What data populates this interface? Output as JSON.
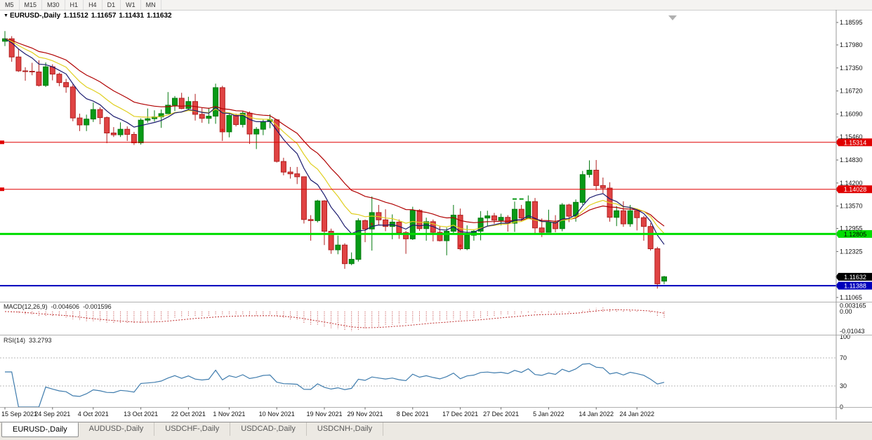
{
  "toolbar": {
    "timeframes": [
      "M5",
      "M15",
      "M30",
      "H1",
      "H4",
      "D1",
      "W1",
      "MN"
    ]
  },
  "chart_header": {
    "dropdown_icon": "▼",
    "symbol": "EURUSD-,Daily",
    "open": "1.11512",
    "high": "1.11657",
    "low": "1.11431",
    "close": "1.11632"
  },
  "price_axis": {
    "ticks": [
      1.18595,
      1.1798,
      1.1735,
      1.1672,
      1.1609,
      1.1546,
      1.1483,
      1.142,
      1.1357,
      1.12955,
      1.12325,
      1.11065
    ]
  },
  "hlines": [
    {
      "price": 1.15314,
      "label": "1.15314",
      "color": "#e00000",
      "text_color": "#ffffff",
      "width": 1
    },
    {
      "price": 1.14028,
      "label": "1.14028",
      "color": "#e00000",
      "text_color": "#ffffff",
      "width": 1
    },
    {
      "price": 1.12805,
      "label": "1.12805",
      "color": "#00dd00",
      "text_color": "#000000",
      "width": 3
    },
    {
      "price": 1.11388,
      "label": "1.11388",
      "color": "#0000bb",
      "text_color": "#ffffff",
      "width": 2
    }
  ],
  "current_price": {
    "price": 1.11632,
    "label": "1.11632",
    "bg": "#000000",
    "text_color": "#ffffff"
  },
  "macd": {
    "name": "MACD(12,26,9)",
    "value_main": "-0.004606",
    "value_signal": "-0.001596",
    "axis": [
      {
        "v": 0.003165,
        "label": "0.003165"
      },
      {
        "v": 0,
        "label": "0.00"
      },
      {
        "v": -0.01043,
        "label": "-0.01043"
      }
    ],
    "color": "#c24040"
  },
  "rsi": {
    "name": "RSI(14)",
    "value": "33.2793",
    "axis": [
      {
        "v": 100,
        "label": "100"
      },
      {
        "v": 70,
        "label": "70"
      },
      {
        "v": 30,
        "label": "30"
      },
      {
        "v": 0,
        "label": "0"
      }
    ],
    "color": "#3f7cad"
  },
  "time_axis": {
    "labels": [
      {
        "label": "15 Sep 2021",
        "i": 0
      },
      {
        "label": "24 Sep 2021",
        "i": 7
      },
      {
        "label": "4 Oct 2021",
        "i": 13
      },
      {
        "label": "13 Oct 2021",
        "i": 20
      },
      {
        "label": "22 Oct 2021",
        "i": 27
      },
      {
        "label": "1 Nov 2021",
        "i": 33
      },
      {
        "label": "10 Nov 2021",
        "i": 40
      },
      {
        "label": "19 Nov 2021",
        "i": 47
      },
      {
        "label": "29 Nov 2021",
        "i": 53
      },
      {
        "label": "8 Dec 2021",
        "i": 60
      },
      {
        "label": "17 Dec 2021",
        "i": 67
      },
      {
        "label": "27 Dec 2021",
        "i": 73
      },
      {
        "label": "5 Jan 2022",
        "i": 80
      },
      {
        "label": "14 Jan 2022",
        "i": 87
      },
      {
        "label": "24 Jan 2022",
        "i": 93
      }
    ]
  },
  "tabs": [
    {
      "label": "EURUSD-,Daily",
      "active": true
    },
    {
      "label": "AUDUSD-,Daily",
      "active": false
    },
    {
      "label": "USDCHF-,Daily",
      "active": false
    },
    {
      "label": "USDCAD-,Daily",
      "active": false
    },
    {
      "label": "USDCNH-,Daily",
      "active": false
    }
  ],
  "chart_data": {
    "type": "candlestick",
    "symbol": "EURUSD",
    "timeframe": "Daily",
    "up_color": "#089a16",
    "down_color": "#e04343",
    "ma_lines": [
      {
        "name": "slow",
        "period": 21,
        "color": "#b00000"
      },
      {
        "name": "mid",
        "period": 13,
        "color": "#e0cf20"
      },
      {
        "name": "fast",
        "period": 8,
        "color": "#1a1a6e"
      }
    ],
    "sell_markers": [
      {
        "i": 32,
        "p": 1.156
      },
      {
        "i": 54,
        "p": 1.1302
      },
      {
        "i": 67,
        "p": 1.1243
      }
    ],
    "tp_dashes": [
      {
        "i": 75,
        "p": 1.1378
      },
      {
        "i": 76,
        "p": 1.1378
      }
    ],
    "ohlc": [
      [
        1.1808,
        1.1836,
        1.1795,
        1.1815
      ],
      [
        1.1815,
        1.1822,
        1.1752,
        1.1765
      ],
      [
        1.1765,
        1.1788,
        1.1724,
        1.1727
      ],
      [
        1.1727,
        1.1737,
        1.17,
        1.1726
      ],
      [
        1.1726,
        1.1749,
        1.1715,
        1.1724
      ],
      [
        1.1724,
        1.1756,
        1.1684,
        1.1687
      ],
      [
        1.1687,
        1.175,
        1.1683,
        1.1738
      ],
      [
        1.1738,
        1.1745,
        1.1701,
        1.1718
      ],
      [
        1.1718,
        1.1722,
        1.1685,
        1.1695
      ],
      [
        1.1695,
        1.1705,
        1.1667,
        1.1683
      ],
      [
        1.1683,
        1.169,
        1.1589,
        1.1598
      ],
      [
        1.1598,
        1.161,
        1.1562,
        1.1579
      ],
      [
        1.1579,
        1.1607,
        1.1562,
        1.1595
      ],
      [
        1.1595,
        1.164,
        1.1587,
        1.1621
      ],
      [
        1.1621,
        1.1627,
        1.1581,
        1.1599
      ],
      [
        1.1599,
        1.1602,
        1.1529,
        1.1557
      ],
      [
        1.1557,
        1.1573,
        1.1546,
        1.1552
      ],
      [
        1.1552,
        1.1586,
        1.1546,
        1.1567
      ],
      [
        1.1567,
        1.1575,
        1.1535,
        1.1553
      ],
      [
        1.1553,
        1.156,
        1.1524,
        1.153
      ],
      [
        1.153,
        1.1597,
        1.1525,
        1.1592
      ],
      [
        1.1592,
        1.1624,
        1.1585,
        1.1596
      ],
      [
        1.1596,
        1.1619,
        1.1588,
        1.1601
      ],
      [
        1.1601,
        1.1621,
        1.1571,
        1.161
      ],
      [
        1.161,
        1.1669,
        1.1609,
        1.1633
      ],
      [
        1.1633,
        1.1658,
        1.1617,
        1.1652
      ],
      [
        1.1652,
        1.1667,
        1.1622,
        1.1624
      ],
      [
        1.1624,
        1.1656,
        1.162,
        1.1643
      ],
      [
        1.1643,
        1.1664,
        1.1591,
        1.1608
      ],
      [
        1.1608,
        1.1626,
        1.1585,
        1.1597
      ],
      [
        1.1597,
        1.1626,
        1.1582,
        1.1603
      ],
      [
        1.1603,
        1.1692,
        1.1582,
        1.1681
      ],
      [
        1.1681,
        1.1686,
        1.1535,
        1.156
      ],
      [
        1.156,
        1.1609,
        1.1545,
        1.1605
      ],
      [
        1.1605,
        1.161,
        1.1575,
        1.158
      ],
      [
        1.158,
        1.1617,
        1.1572,
        1.1611
      ],
      [
        1.1611,
        1.1616,
        1.1527,
        1.1554
      ],
      [
        1.1554,
        1.1573,
        1.1513,
        1.1567
      ],
      [
        1.1567,
        1.1593,
        1.1551,
        1.1588
      ],
      [
        1.1588,
        1.1608,
        1.157,
        1.1593
      ],
      [
        1.1593,
        1.1595,
        1.1476,
        1.1479
      ],
      [
        1.1479,
        1.1489,
        1.1441,
        1.145
      ],
      [
        1.145,
        1.1464,
        1.1432,
        1.1445
      ],
      [
        1.1445,
        1.1464,
        1.1417,
        1.1437
      ],
      [
        1.1437,
        1.1438,
        1.1309,
        1.132
      ],
      [
        1.132,
        1.1332,
        1.1262,
        1.1317
      ],
      [
        1.1317,
        1.1374,
        1.1312,
        1.1371
      ],
      [
        1.1371,
        1.1373,
        1.125,
        1.1288
      ],
      [
        1.1288,
        1.1295,
        1.1226,
        1.1237
      ],
      [
        1.1237,
        1.1276,
        1.1225,
        1.125
      ],
      [
        1.125,
        1.1255,
        1.1185,
        1.1199
      ],
      [
        1.1199,
        1.123,
        1.1195,
        1.1211
      ],
      [
        1.1211,
        1.1323,
        1.1205,
        1.1317
      ],
      [
        1.1317,
        1.132,
        1.1258,
        1.1294
      ],
      [
        1.1294,
        1.1383,
        1.1235,
        1.1339
      ],
      [
        1.1339,
        1.136,
        1.1305,
        1.1319
      ],
      [
        1.1319,
        1.1348,
        1.1288,
        1.1301
      ],
      [
        1.1301,
        1.1334,
        1.1266,
        1.1313
      ],
      [
        1.1313,
        1.132,
        1.1267,
        1.1284
      ],
      [
        1.1284,
        1.1289,
        1.1226,
        1.1267
      ],
      [
        1.1267,
        1.1355,
        1.1264,
        1.1345
      ],
      [
        1.1345,
        1.1348,
        1.1289,
        1.1295
      ],
      [
        1.1295,
        1.1325,
        1.1262,
        1.1314
      ],
      [
        1.1314,
        1.132,
        1.126,
        1.1285
      ],
      [
        1.1285,
        1.1303,
        1.126,
        1.1262
      ],
      [
        1.1262,
        1.1298,
        1.1222,
        1.1288
      ],
      [
        1.1288,
        1.136,
        1.128,
        1.1332
      ],
      [
        1.1332,
        1.135,
        1.1236,
        1.124
      ],
      [
        1.124,
        1.1304,
        1.1236,
        1.1277
      ],
      [
        1.1277,
        1.1293,
        1.1262,
        1.1288
      ],
      [
        1.1288,
        1.1343,
        1.1263,
        1.1324
      ],
      [
        1.1324,
        1.1344,
        1.1303,
        1.133
      ],
      [
        1.133,
        1.1338,
        1.1308,
        1.1318
      ],
      [
        1.1318,
        1.1336,
        1.1304,
        1.1326
      ],
      [
        1.1326,
        1.1332,
        1.1287,
        1.131
      ],
      [
        1.131,
        1.1369,
        1.1286,
        1.1348
      ],
      [
        1.1348,
        1.136,
        1.1315,
        1.1324
      ],
      [
        1.1324,
        1.1386,
        1.1321,
        1.1369
      ],
      [
        1.1369,
        1.1379,
        1.1279,
        1.1297
      ],
      [
        1.1297,
        1.1323,
        1.1272,
        1.1285
      ],
      [
        1.1285,
        1.1347,
        1.1284,
        1.1313
      ],
      [
        1.1313,
        1.1332,
        1.1285,
        1.1295
      ],
      [
        1.1295,
        1.1365,
        1.1288,
        1.136
      ],
      [
        1.136,
        1.1363,
        1.1313,
        1.1329
      ],
      [
        1.1329,
        1.1375,
        1.1314,
        1.1367
      ],
      [
        1.1367,
        1.1453,
        1.136,
        1.1443
      ],
      [
        1.1443,
        1.1482,
        1.1435,
        1.1455
      ],
      [
        1.1455,
        1.1483,
        1.1399,
        1.1413
      ],
      [
        1.1413,
        1.1435,
        1.1392,
        1.1406
      ],
      [
        1.1406,
        1.1422,
        1.1314,
        1.1326
      ],
      [
        1.1326,
        1.1357,
        1.1302,
        1.1344
      ],
      [
        1.1344,
        1.137,
        1.13,
        1.1308
      ],
      [
        1.1308,
        1.136,
        1.13,
        1.1344
      ],
      [
        1.1344,
        1.1348,
        1.129,
        1.1325
      ],
      [
        1.1325,
        1.133,
        1.1262,
        1.1301
      ],
      [
        1.1301,
        1.131,
        1.1235,
        1.124
      ],
      [
        1.124,
        1.1245,
        1.1131,
        1.1144
      ],
      [
        1.11512,
        1.11657,
        1.11431,
        1.11632
      ]
    ]
  }
}
